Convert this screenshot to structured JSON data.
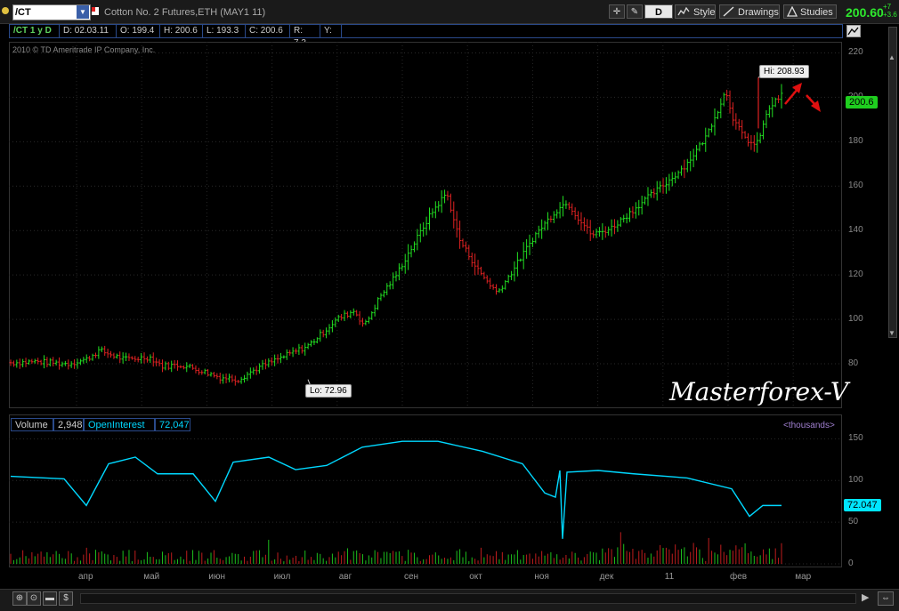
{
  "toolbar": {
    "symbol": "/CT",
    "description": "Cotton No. 2 Futures,ETH (MAY1 11)",
    "period_button": "D",
    "style_label": "Style",
    "drawings_label": "Drawings",
    "studies_label": "Studies",
    "last_price": "200.60",
    "change_line1": "+7",
    "change_line2": "+3.6"
  },
  "infobar": {
    "symbol_period": "/CT 1 y D",
    "date": "D: 02.03.11",
    "open": "O: 199.4",
    "high": "H: 200.6",
    "low": "L: 193.3",
    "close": "C: 200.6",
    "range": "R: 7.3",
    "y": "Y:"
  },
  "copyright": "2010 © TD Ameritrade IP Company, Inc.",
  "price_pane": {
    "hi_label": "Hi: 208.93",
    "lo_label": "Lo: 72.96",
    "last_badge": "200.6",
    "watermark": "Masterforex-V",
    "ticks": [
      "220",
      "200",
      "180",
      "160",
      "140",
      "120",
      "100",
      "80"
    ],
    "up_color": "#22e022",
    "down_color": "#e02222",
    "arrow_color": "#e01010"
  },
  "volume_pane": {
    "volume_label": "Volume",
    "volume_value": "2,948",
    "oi_label": "OpenInterest",
    "oi_value": "72,047",
    "units": "<thousands>",
    "oi_badge": "72.047",
    "ticks": [
      "150",
      "100",
      "50",
      "0"
    ],
    "oi_color": "#00d8ff"
  },
  "x_axis": [
    "апр",
    "май",
    "июн",
    "июл",
    "авг",
    "сен",
    "окт",
    "ноя",
    "дек",
    "11",
    "фев",
    "мар"
  ],
  "chart_data": [
    {
      "type": "line",
      "title": "",
      "xlabel": "",
      "ylabel": "",
      "ylim": [
        60,
        225
      ],
      "x": [
        "апр",
        "май",
        "июн",
        "июл",
        "авг",
        "сен",
        "окт",
        "ноя",
        "дек",
        "11",
        "фев",
        "мар"
      ],
      "series": [
        {
          "values": [
            80.5,
            83.5,
            80,
            75.5,
            76,
            86.5,
            103.5,
            145,
            113,
            148,
            180,
            200.6
          ]
        }
      ],
      "high": 208.93,
      "low": 72.96,
      "last": 200.6
    },
    {
      "type": "line",
      "title": "",
      "xlabel": "",
      "ylabel": "",
      "ylim": [
        0,
        160
      ],
      "x": [
        "апр",
        "май",
        "июн",
        "июл",
        "авг",
        "сен",
        "окт",
        "ноя",
        "дек",
        "11",
        "фев",
        "мар"
      ],
      "series": [
        {
          "name": "OpenInterest",
          "values": [
            100,
            122,
            105,
            126,
            113,
            147,
            138,
            110,
            110,
            109,
            97,
            72
          ]
        }
      ],
      "last_volume": 2948,
      "last_open_interest": 72047
    }
  ]
}
